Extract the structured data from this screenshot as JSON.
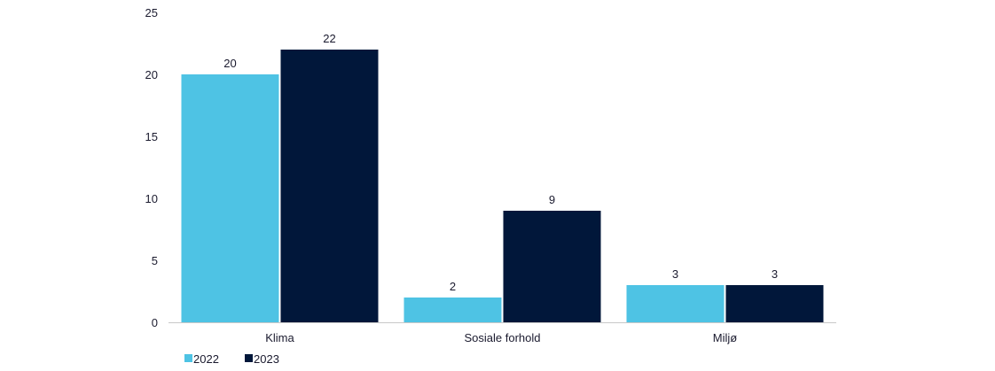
{
  "chart_data": {
    "type": "bar",
    "categories": [
      "Klima",
      "Sosiale forhold",
      "Miljø"
    ],
    "series": [
      {
        "name": "2022",
        "values": [
          20,
          2,
          3
        ],
        "color": "#4ec3e4"
      },
      {
        "name": "2023",
        "values": [
          22,
          9,
          3
        ],
        "color": "#01173a"
      }
    ],
    "ylim": [
      0,
      25
    ],
    "yticks": [
      0,
      5,
      10,
      15,
      20,
      25
    ],
    "grid": false,
    "legend_position": "bottom-left",
    "axis_color": "#c8c8c8",
    "text_color": "#1a1a2e"
  }
}
